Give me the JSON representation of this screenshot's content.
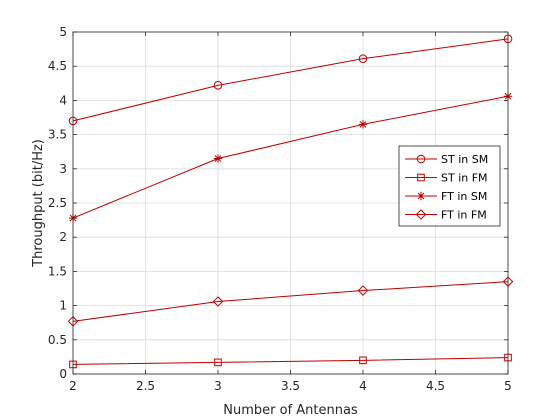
{
  "chart_data": {
    "type": "line",
    "title": "",
    "xlabel": "Number of Antennas",
    "ylabel": "Throughput (bit/Hz)",
    "xlim": [
      2,
      5
    ],
    "ylim": [
      0,
      5
    ],
    "xticks": [
      "2",
      "2.5",
      "3",
      "3.5",
      "4",
      "4.5",
      "5"
    ],
    "yticks": [
      "0",
      "0.5",
      "1",
      "1.5",
      "2",
      "2.5",
      "3",
      "3.5",
      "4",
      "4.5",
      "5"
    ],
    "grid": true,
    "legend_position": "right",
    "line_color": "#c00000",
    "x": [
      2,
      3,
      4,
      5
    ],
    "series": [
      {
        "name": "ST in SM",
        "marker": "circle",
        "values": [
          3.7,
          4.22,
          4.61,
          4.9
        ]
      },
      {
        "name": "ST in FM",
        "marker": "square",
        "values": [
          0.14,
          0.17,
          0.2,
          0.24
        ]
      },
      {
        "name": "FT in SM",
        "marker": "asterisk",
        "values": [
          2.28,
          3.15,
          3.65,
          4.06
        ]
      },
      {
        "name": "FT in FM",
        "marker": "diamond",
        "values": [
          0.77,
          1.06,
          1.22,
          1.35
        ]
      }
    ]
  }
}
